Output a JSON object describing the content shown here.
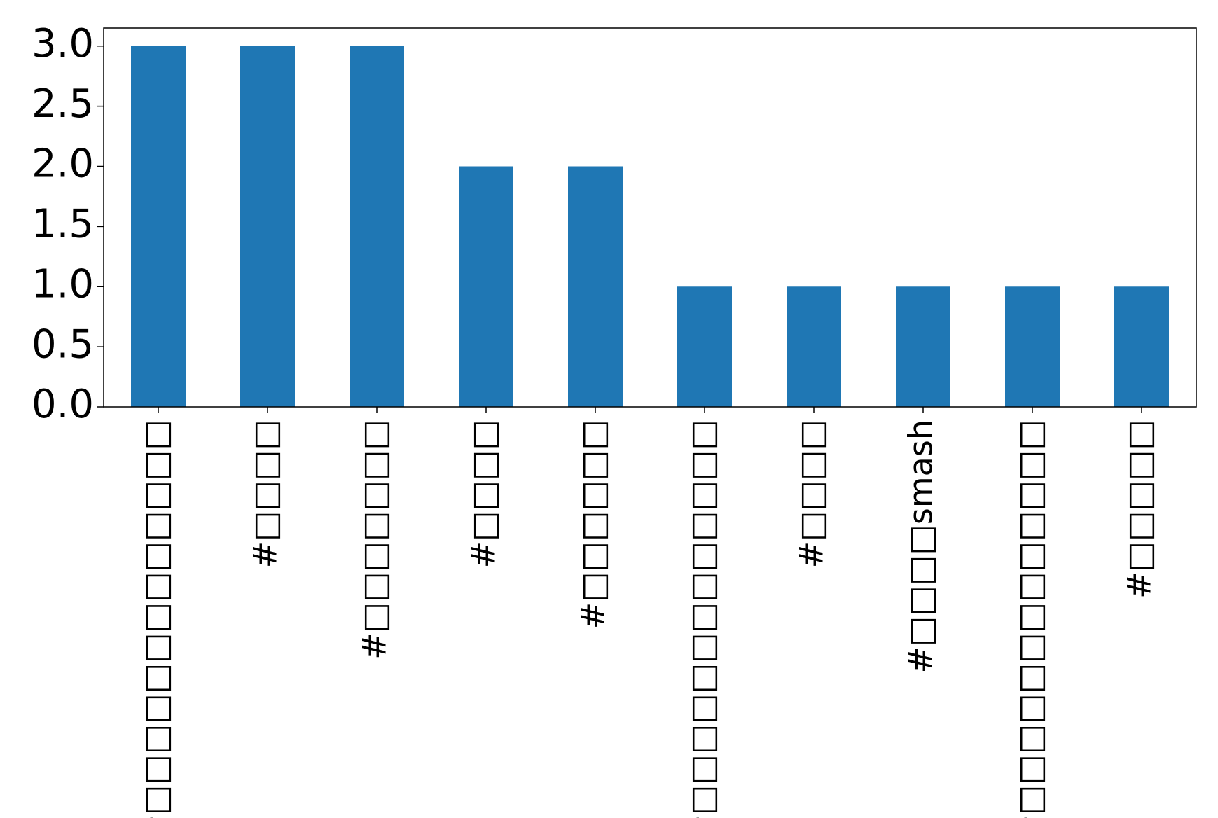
{
  "chart_data": {
    "type": "bar",
    "categories": [
      "#□□□□□□□□□□□□□",
      "#□□□□",
      "#□□□□□□□",
      "#□□□□",
      "#□□□□□□",
      "#□□□□□□□□□□□□□",
      "#□□□□",
      "#□□□□smash",
      "#□□□□□□□□□□□□□",
      "#□□□□□"
    ],
    "values": [
      3,
      3,
      3,
      2,
      2,
      1,
      1,
      1,
      1,
      1
    ],
    "color": "#1f77b4",
    "ylim": [
      0,
      3.15
    ],
    "yticks": [
      {
        "value": 0,
        "label": "0.0"
      },
      0.5,
      {
        "value": 1,
        "label": "1.0"
      },
      1.5,
      {
        "value": 2,
        "label": "2.0"
      },
      2.5,
      {
        "value": 3,
        "label": "3.0"
      }
    ],
    "grid": false
  }
}
